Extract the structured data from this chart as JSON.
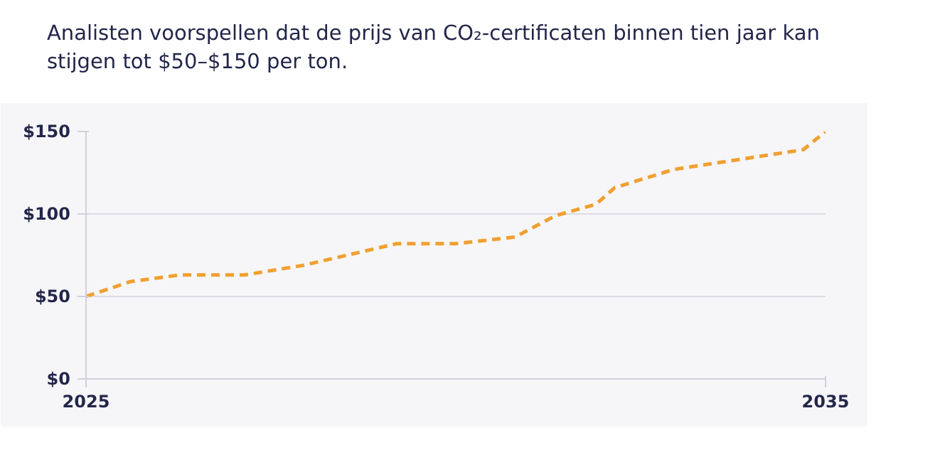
{
  "chart_data": {
    "type": "line",
    "title": "Analisten voorspellen dat de prijs van CO₂-certificaten binnen tien jaar kan stijgen tot $50–$150 per ton.",
    "x": [
      2025,
      2025.6,
      2026.26,
      2027.14,
      2027.95,
      2029.2,
      2030.0,
      2030.8,
      2031.35,
      2031.9,
      2032.15,
      2032.95,
      2034.7,
      2035
    ],
    "series": [
      {
        "color": "#f0a030",
        "values": [
          50,
          59,
          63,
          63,
          69,
          82,
          82,
          86,
          99,
          106,
          116,
          127,
          139,
          150
        ]
      }
    ],
    "xlim": [
      2025,
      2035
    ],
    "xticks": [
      2025,
      2035
    ],
    "ylim": [
      0,
      150
    ],
    "yticks": [
      {
        "value": 0,
        "label": "$0"
      },
      {
        "value": 50,
        "label": "$50"
      },
      {
        "value": 100,
        "label": "$100"
      },
      {
        "value": 150,
        "label": "$150"
      }
    ],
    "grid": "y",
    "line_style": "dashed",
    "marker": "none"
  }
}
